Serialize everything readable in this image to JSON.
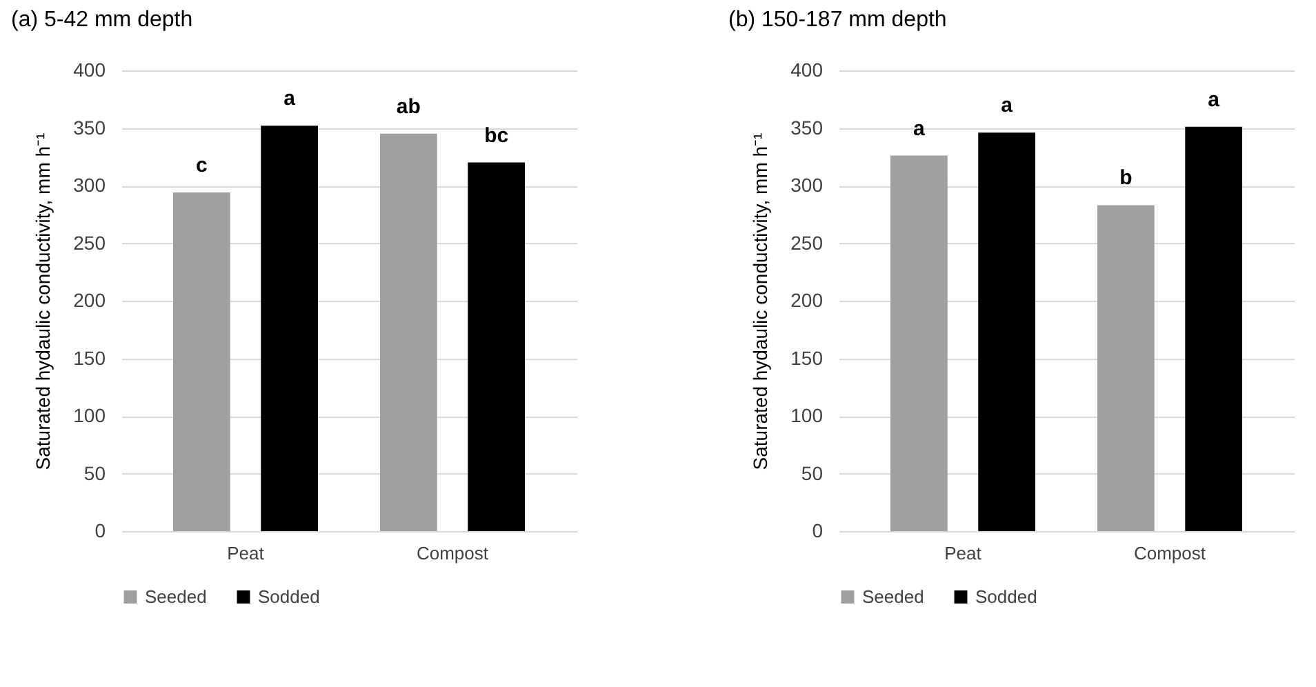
{
  "chart_data": [
    {
      "type": "bar",
      "title": "(a) 5-42 mm depth",
      "ylabel": "Saturated hydaulic conductivity, mm h⁻¹",
      "categories": [
        "Peat",
        "Compost"
      ],
      "series": [
        {
          "name": "Seeded",
          "color": "#a0a0a0",
          "values": [
            294,
            345
          ],
          "value_labels": [
            "c",
            "ab"
          ]
        },
        {
          "name": "Sodded",
          "color": "#000000",
          "values": [
            352,
            320
          ],
          "value_labels": [
            "a",
            "bc"
          ]
        }
      ],
      "ylim": [
        0,
        400
      ],
      "yticks": [
        0,
        50,
        100,
        150,
        200,
        250,
        300,
        350,
        400
      ],
      "grid": "y",
      "legend": "bottom"
    },
    {
      "type": "bar",
      "title": "(b) 150-187 mm depth",
      "ylabel": "Saturated hydaulic conductivity, mm h⁻¹",
      "categories": [
        "Peat",
        "Compost"
      ],
      "series": [
        {
          "name": "Seeded",
          "color": "#a0a0a0",
          "values": [
            326,
            283
          ],
          "value_labels": [
            "a",
            "b"
          ]
        },
        {
          "name": "Sodded",
          "color": "#000000",
          "values": [
            346,
            351
          ],
          "value_labels": [
            "a",
            "a"
          ]
        }
      ],
      "ylim": [
        0,
        400
      ],
      "yticks": [
        0,
        50,
        100,
        150,
        200,
        250,
        300,
        350,
        400
      ],
      "grid": "y",
      "legend": "bottom"
    }
  ]
}
